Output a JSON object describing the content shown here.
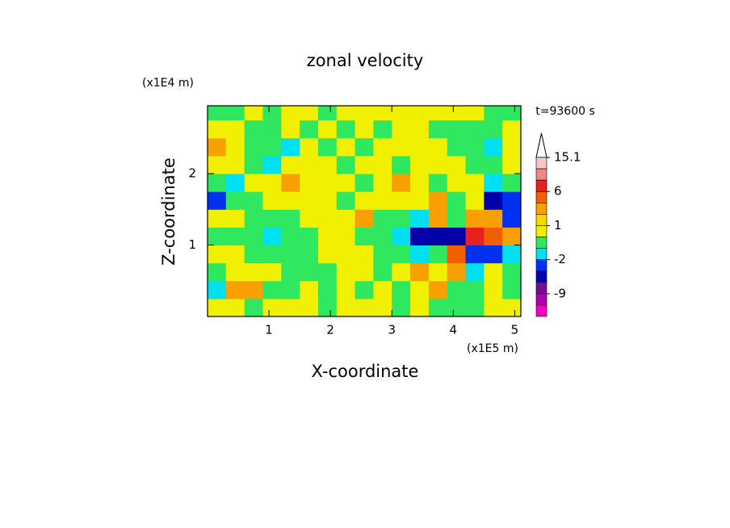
{
  "chart_data": {
    "type": "contour",
    "title": "zonal velocity",
    "x_label": "X-coordinate",
    "y_label": "Z-coordinate",
    "x_unit": "(x1E5 m)",
    "y_unit": "(x1E4 m)",
    "time_label": "t=93600 s",
    "xlim": [
      0,
      5.1
    ],
    "ylim": [
      0,
      2.95
    ],
    "xticks": [
      1,
      2,
      3,
      4,
      5
    ],
    "yticks": [
      1,
      2
    ],
    "x": [
      0.15,
      0.45,
      0.75,
      1.05,
      1.35,
      1.65,
      1.95,
      2.25,
      2.55,
      2.85,
      3.15,
      3.45,
      3.75,
      4.05,
      4.35,
      4.65,
      4.95
    ],
    "z": [
      0.125,
      0.375,
      0.625,
      0.875,
      1.125,
      1.375,
      1.625,
      1.875,
      2.125,
      2.375,
      2.625,
      2.875
    ],
    "values": [
      [
        0.5,
        0.5,
        -0.5,
        0.5,
        0.5,
        0.5,
        -0.5,
        0.5,
        0.5,
        0.5,
        -0.5,
        0.5,
        -0.5,
        -0.5,
        -0.5,
        0.5,
        0.5
      ],
      [
        -1.5,
        2.5,
        2.5,
        -0.5,
        -0.5,
        0.5,
        -0.5,
        0.5,
        -0.5,
        0.5,
        -0.5,
        0.5,
        2.5,
        -0.5,
        -0.5,
        0.5,
        -0.5
      ],
      [
        -0.5,
        0.5,
        0.5,
        0.5,
        -0.5,
        -0.5,
        -0.5,
        0.5,
        0.5,
        -0.5,
        0.5,
        2.5,
        0.5,
        2.5,
        -1.5,
        0.5,
        -0.5
      ],
      [
        0.5,
        0.5,
        -0.5,
        -0.5,
        -0.5,
        -0.5,
        0.5,
        0.5,
        0.5,
        -0.5,
        -0.5,
        -1.5,
        -0.5,
        4,
        -3,
        -3,
        -1.5
      ],
      [
        -0.5,
        -0.5,
        -0.5,
        -1.5,
        -0.5,
        -0.5,
        0.5,
        0.5,
        -0.5,
        -0.5,
        -1.5,
        -5,
        -5,
        -5,
        7,
        4,
        2.5
      ],
      [
        0.5,
        0.5,
        -0.5,
        -0.5,
        -0.5,
        0.5,
        0.5,
        0.5,
        2.5,
        -0.5,
        -0.5,
        -1.5,
        2.5,
        -0.5,
        2.5,
        2.5,
        -3
      ],
      [
        -3,
        -0.5,
        -0.5,
        0.5,
        0.5,
        0.5,
        0.5,
        -0.5,
        0.5,
        0.5,
        0.5,
        0.5,
        2.5,
        -0.5,
        0.5,
        -5,
        -3
      ],
      [
        -0.5,
        -1.5,
        0.5,
        0.5,
        2.5,
        0.5,
        0.5,
        0.5,
        -0.5,
        0.5,
        2.5,
        0.5,
        -0.5,
        0.5,
        0.5,
        -1.5,
        -0.5
      ],
      [
        0.5,
        0.5,
        -0.5,
        -1.5,
        0.5,
        0.5,
        0.5,
        -0.5,
        0.5,
        0.5,
        -0.5,
        0.5,
        0.5,
        0.5,
        -0.5,
        -0.5,
        0.5
      ],
      [
        2.5,
        0.5,
        -0.5,
        -0.5,
        -1.5,
        0.5,
        -0.5,
        0.5,
        -0.5,
        0.5,
        0.5,
        0.5,
        0.5,
        -0.5,
        -0.5,
        -1.5,
        0.5
      ],
      [
        0.5,
        0.5,
        -0.5,
        -0.5,
        0.5,
        -0.5,
        0.5,
        -0.5,
        0.5,
        -0.5,
        0.5,
        0.5,
        -0.5,
        -0.5,
        -0.5,
        -0.5,
        0.5
      ],
      [
        -0.5,
        -0.5,
        0.5,
        -0.5,
        0.5,
        0.5,
        -0.5,
        0.5,
        0.5,
        0.5,
        0.5,
        0.5,
        0.5,
        0.5,
        0.5,
        -0.5,
        -0.5
      ]
    ],
    "levels": [
      15.1,
      12,
      9,
      6,
      3,
      2,
      1,
      0,
      -1,
      -2,
      -4,
      -6,
      -9,
      -12,
      -15
    ],
    "colors": [
      "#f8c4c4",
      "#f08888",
      "#e82020",
      "#f06000",
      "#f8a000",
      "#f8d800",
      "#f0f000",
      "#30e860",
      "#00e0f0",
      "#0030f0",
      "#0000a8",
      "#701090",
      "#b000b0",
      "#f000c0"
    ],
    "over_color": "#ffffff",
    "colorbar_ticks": [
      15.1,
      6,
      1,
      -2,
      -9
    ]
  }
}
